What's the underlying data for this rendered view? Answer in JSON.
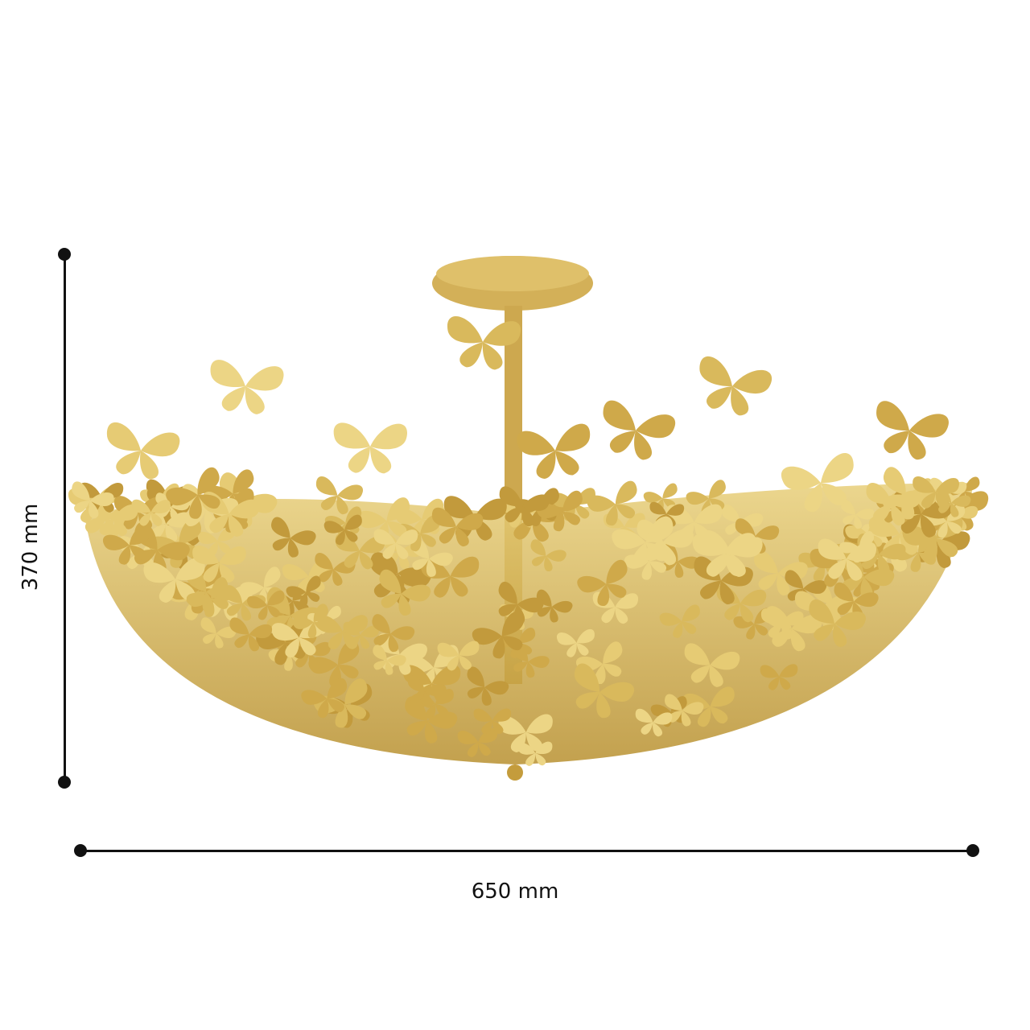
{
  "product": {
    "type": "butterfly semi-flush ceiling light",
    "finish_color": "#D4AF4F"
  },
  "dimensions": {
    "height_label": "370 mm",
    "width_label": "650 mm"
  }
}
